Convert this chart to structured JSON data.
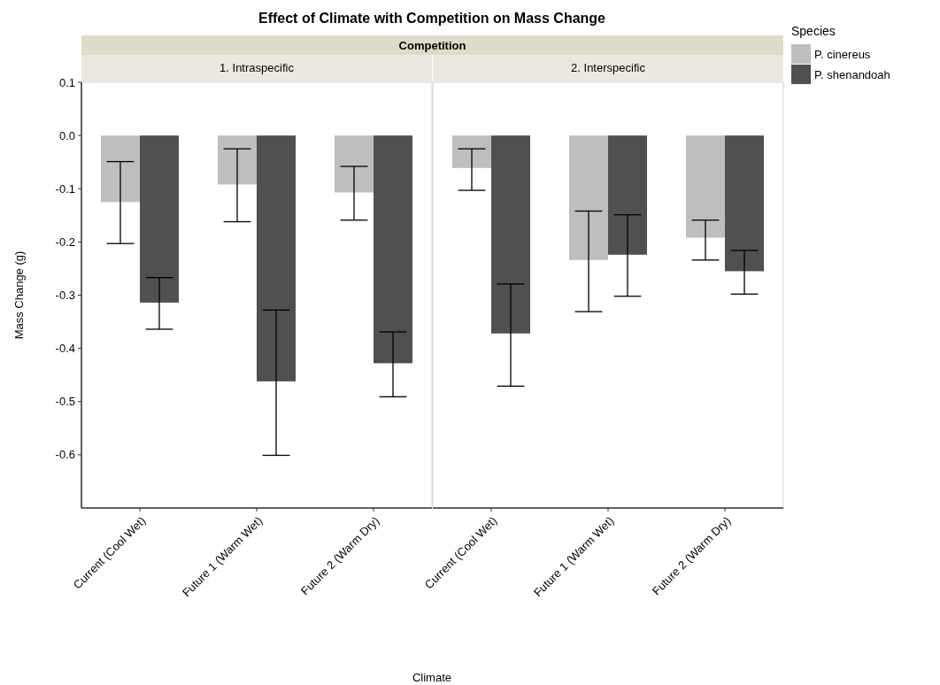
{
  "chart_data": [
    {
      "type": "bar",
      "title": "Effect of Climate with Competition on Mass Change",
      "subtitle": "1. Intraspecific",
      "annotations": [
        "Competition"
      ],
      "xlabel": "Climate",
      "ylabel": "Mass Change (g)",
      "categories": [
        "Current (Cool Wet)",
        "Future 1 (Warm Wet)",
        "Future 2 (Warm Dry)"
      ],
      "ylim": [
        -0.7,
        0.1
      ],
      "yticks": [
        0.1,
        {
          "value": 0,
          "label": "0.0"
        },
        -0.1,
        -0.2,
        -0.3,
        -0.4,
        -0.5,
        -0.6
      ],
      "series": [
        {
          "color": "#bebebe",
          "values": [
            -0.125,
            -0.092,
            -0.107
          ],
          "errors": [
            [
              -0.203,
              -0.049
            ],
            [
              -0.162,
              -0.025
            ],
            [
              -0.159,
              -0.058
            ]
          ]
        },
        {
          "color": "#505050",
          "values": [
            -0.314,
            -0.462,
            -0.428
          ],
          "errors": [
            [
              -0.364,
              -0.267
            ],
            [
              -0.601,
              -0.328
            ],
            [
              -0.491,
              -0.369
            ]
          ]
        }
      ]
    },
    {
      "type": "bar",
      "subtitle": "2. Interspecific",
      "legend": "right",
      "legend_title": "Species",
      "tick_labels": "x",
      "categories": [
        "Current (Cool Wet)",
        "Future 1 (Warm Wet)",
        "Future 2 (Warm Dry)"
      ],
      "ylim": [
        -0.7,
        0.1
      ],
      "series": [
        {
          "name": "P. cinereus",
          "color": "#bebebe",
          "values": [
            -0.061,
            -0.234,
            -0.192
          ],
          "errors": [
            [
              -0.103,
              -0.025
            ],
            [
              -0.331,
              -0.142
            ],
            [
              -0.234,
              -0.159
            ]
          ]
        },
        {
          "name": "P. shenandoah",
          "color": "#505050",
          "values": [
            -0.372,
            -0.224,
            -0.255
          ],
          "errors": [
            [
              -0.471,
              -0.279
            ],
            [
              -0.302,
              -0.149
            ],
            [
              -0.298,
              -0.216
            ]
          ]
        }
      ]
    }
  ]
}
